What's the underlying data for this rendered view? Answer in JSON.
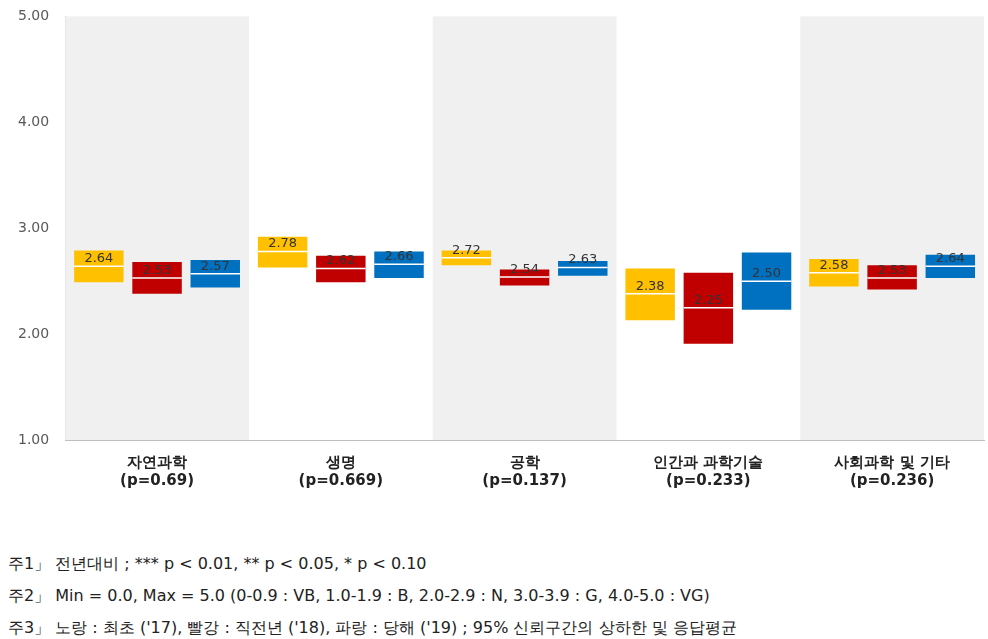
{
  "chart_data": {
    "type": "bar",
    "categories": [
      "자연과학",
      "생명",
      "공학",
      "인간과 과학기술",
      "사회과학 및 기타"
    ],
    "category_notes": [
      "(p=0.69)",
      "(p=0.669)",
      "(p=0.137)",
      "(p=0.233)",
      "(p=0.236)"
    ],
    "series": [
      {
        "name": "최초 ('17)",
        "color": "#ffc000",
        "values": [
          2.64,
          2.78,
          2.72,
          2.38,
          2.58
        ],
        "value_labels": [
          "2.64",
          "2.78",
          "2.72",
          "2.38",
          "2.58"
        ],
        "lower": [
          2.49,
          2.63,
          2.65,
          2.13,
          2.45
        ],
        "upper": [
          2.79,
          2.92,
          2.79,
          2.62,
          2.71
        ]
      },
      {
        "name": "직전년 ('18)",
        "color": "#c00000",
        "values": [
          2.53,
          2.62,
          2.54,
          2.25,
          2.53
        ],
        "value_labels": [
          "2.53",
          "2.62",
          "2.54",
          "2.25",
          "2.53"
        ],
        "lower": [
          2.38,
          2.49,
          2.46,
          1.91,
          2.42
        ],
        "upper": [
          2.68,
          2.74,
          2.61,
          2.58,
          2.65
        ]
      },
      {
        "name": "당해 ('19)",
        "color": "#0070c0",
        "values": [
          2.57,
          2.66,
          2.63,
          2.5,
          2.64
        ],
        "value_labels": [
          "2.57",
          "2.66",
          "2.63",
          "2.50",
          "2.64"
        ],
        "lower": [
          2.44,
          2.53,
          2.55,
          2.23,
          2.53
        ],
        "upper": [
          2.7,
          2.78,
          2.69,
          2.77,
          2.75
        ]
      }
    ],
    "ylim": [
      1,
      5
    ],
    "yticks": [
      {
        "value": 1,
        "label": "1.00"
      },
      {
        "value": 2,
        "label": "2.00"
      },
      {
        "value": 3,
        "label": "3.00"
      },
      {
        "value": 4,
        "label": "4.00"
      },
      {
        "value": 5,
        "label": "5.00"
      }
    ],
    "grid": false,
    "legend": "none",
    "data_labels": true,
    "notes": [
      "주1」 전년대비 ; *** p < 0.01, ** p < 0.05, * p < 0.10",
      "주2」 Min = 0.0, Max = 5.0 (0-0.9 : VB, 1.0-1.9 : B, 2.0-2.9 : N, 3.0-3.9 : G, 4.0-5.0 : VG)",
      "주3」 노랑 : 최초 ('17), 빨강 : 직전년 ('18), 파랑 : 당해 ('19) ; 95% 신뢰구간의 상하한 및 응답평균"
    ]
  }
}
